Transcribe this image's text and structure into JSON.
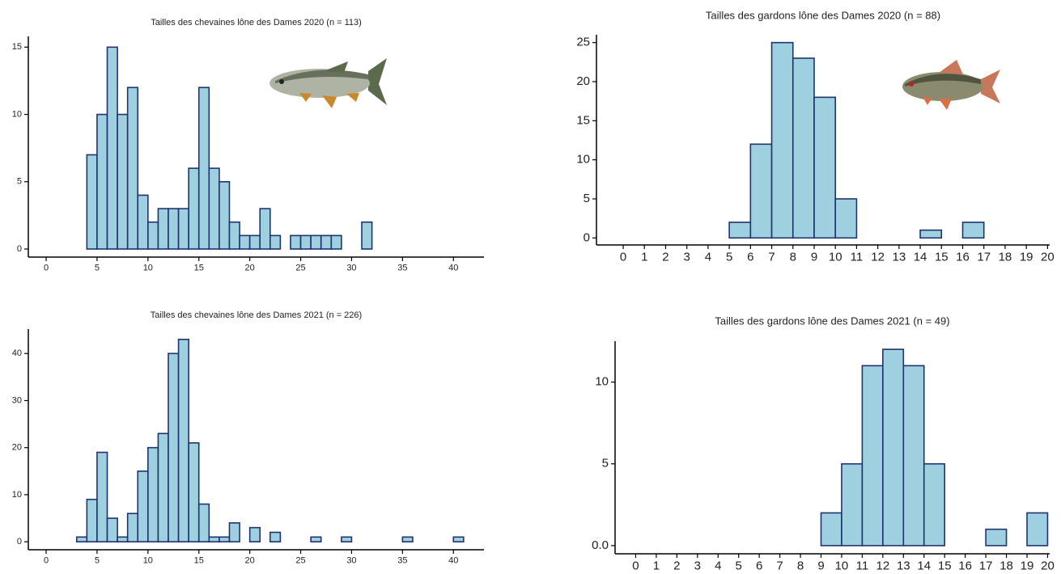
{
  "chart_data": [
    {
      "type": "histogram",
      "title": "Tailles des chevaines lône des Dames 2020  (n = 113)",
      "bins": [
        0,
        1,
        2,
        3,
        4,
        5,
        6,
        7,
        8,
        9,
        10,
        11,
        12,
        13,
        14,
        15,
        16,
        17,
        18,
        19,
        20,
        21,
        22,
        23,
        24,
        25,
        26,
        27,
        28,
        29,
        30,
        31,
        32,
        33,
        34,
        35,
        36,
        37,
        38,
        39,
        40,
        41
      ],
      "values": [
        0,
        0,
        0,
        0,
        7,
        10,
        15,
        10,
        12,
        4,
        2,
        3,
        3,
        3,
        6,
        12,
        6,
        5,
        2,
        1,
        1,
        3,
        1,
        0,
        1,
        1,
        1,
        1,
        1,
        0,
        0,
        2,
        0,
        0,
        0,
        0,
        0,
        0,
        0,
        0,
        0
      ],
      "color": "#9fd0e0",
      "edgecolor": "#1f3370",
      "xlim": [
        -1.75,
        43
      ],
      "xticks": [
        0,
        5,
        10,
        15,
        20,
        25,
        30,
        35,
        40
      ],
      "ylim": [
        -0.6,
        15.8
      ],
      "yticks": [
        0,
        5,
        10,
        15
      ]
    },
    {
      "type": "histogram",
      "title": "Tailles des chevaines lône des Dames 2021  (n = 226)",
      "bins": [
        0,
        1,
        2,
        3,
        4,
        5,
        6,
        7,
        8,
        9,
        10,
        11,
        12,
        13,
        14,
        15,
        16,
        17,
        18,
        19,
        20,
        21,
        22,
        23,
        24,
        25,
        26,
        27,
        28,
        29,
        30,
        31,
        32,
        33,
        34,
        35,
        36,
        37,
        38,
        39,
        40,
        41
      ],
      "values": [
        0,
        0,
        0,
        1,
        9,
        19,
        5,
        1,
        6,
        15,
        20,
        23,
        40,
        43,
        21,
        8,
        1,
        1,
        4,
        0,
        3,
        0,
        2,
        0,
        0,
        0,
        1,
        0,
        0,
        1,
        0,
        0,
        0,
        0,
        0,
        1,
        0,
        0,
        0,
        0,
        1
      ],
      "color": "#9fd0e0",
      "edgecolor": "#1f3370",
      "xlim": [
        -1.75,
        43
      ],
      "xticks": [
        0,
        5,
        10,
        15,
        20,
        25,
        30,
        35,
        40
      ],
      "ylim": [
        -1.7,
        45.2
      ],
      "yticks": [
        0,
        10,
        20,
        30,
        40
      ]
    },
    {
      "type": "histogram",
      "title": "Tailles des gardons lône des Dames 2020  (n = 88)",
      "bins": [
        0,
        1,
        2,
        3,
        4,
        5,
        6,
        7,
        8,
        9,
        10,
        11,
        12,
        13,
        14,
        15,
        16,
        17,
        18,
        19,
        20
      ],
      "values": [
        0,
        0,
        0,
        0,
        0,
        2,
        12,
        25,
        23,
        18,
        5,
        0,
        0,
        0,
        1,
        0,
        2,
        0,
        0,
        0
      ],
      "color": "#9fd0e0",
      "edgecolor": "#1f3370",
      "xlim": [
        -1.26,
        20.1
      ],
      "xticks": [
        0,
        1,
        2,
        3,
        4,
        5,
        6,
        7,
        8,
        9,
        10,
        11,
        12,
        13,
        14,
        15,
        16,
        17,
        18,
        19,
        20
      ],
      "ylim": [
        -0.9,
        26
      ],
      "yticks": [
        0,
        5,
        10,
        15,
        20,
        25
      ]
    },
    {
      "type": "histogram",
      "title": "Tailles des gardons lône des Dames 2021  (n = 49)",
      "bins": [
        0,
        1,
        2,
        3,
        4,
        5,
        6,
        7,
        8,
        9,
        10,
        11,
        12,
        13,
        14,
        15,
        16,
        17,
        18,
        19,
        20
      ],
      "values": [
        0,
        0,
        0,
        0,
        0,
        0,
        0,
        0,
        0,
        2,
        5,
        11,
        12,
        11,
        5,
        0,
        0,
        1,
        0,
        2
      ],
      "color": "#9fd0e0",
      "edgecolor": "#1f3370",
      "xlim": [
        -1,
        20.1
      ],
      "xticks": [
        0,
        1,
        2,
        3,
        4,
        5,
        6,
        7,
        8,
        9,
        10,
        11,
        12,
        13,
        14,
        15,
        16,
        17,
        18,
        19,
        20
      ],
      "ylim": [
        -0.5,
        12.5
      ],
      "yticks": [
        {
          "value": 0,
          "label": "0.0"
        },
        5,
        10
      ]
    }
  ]
}
